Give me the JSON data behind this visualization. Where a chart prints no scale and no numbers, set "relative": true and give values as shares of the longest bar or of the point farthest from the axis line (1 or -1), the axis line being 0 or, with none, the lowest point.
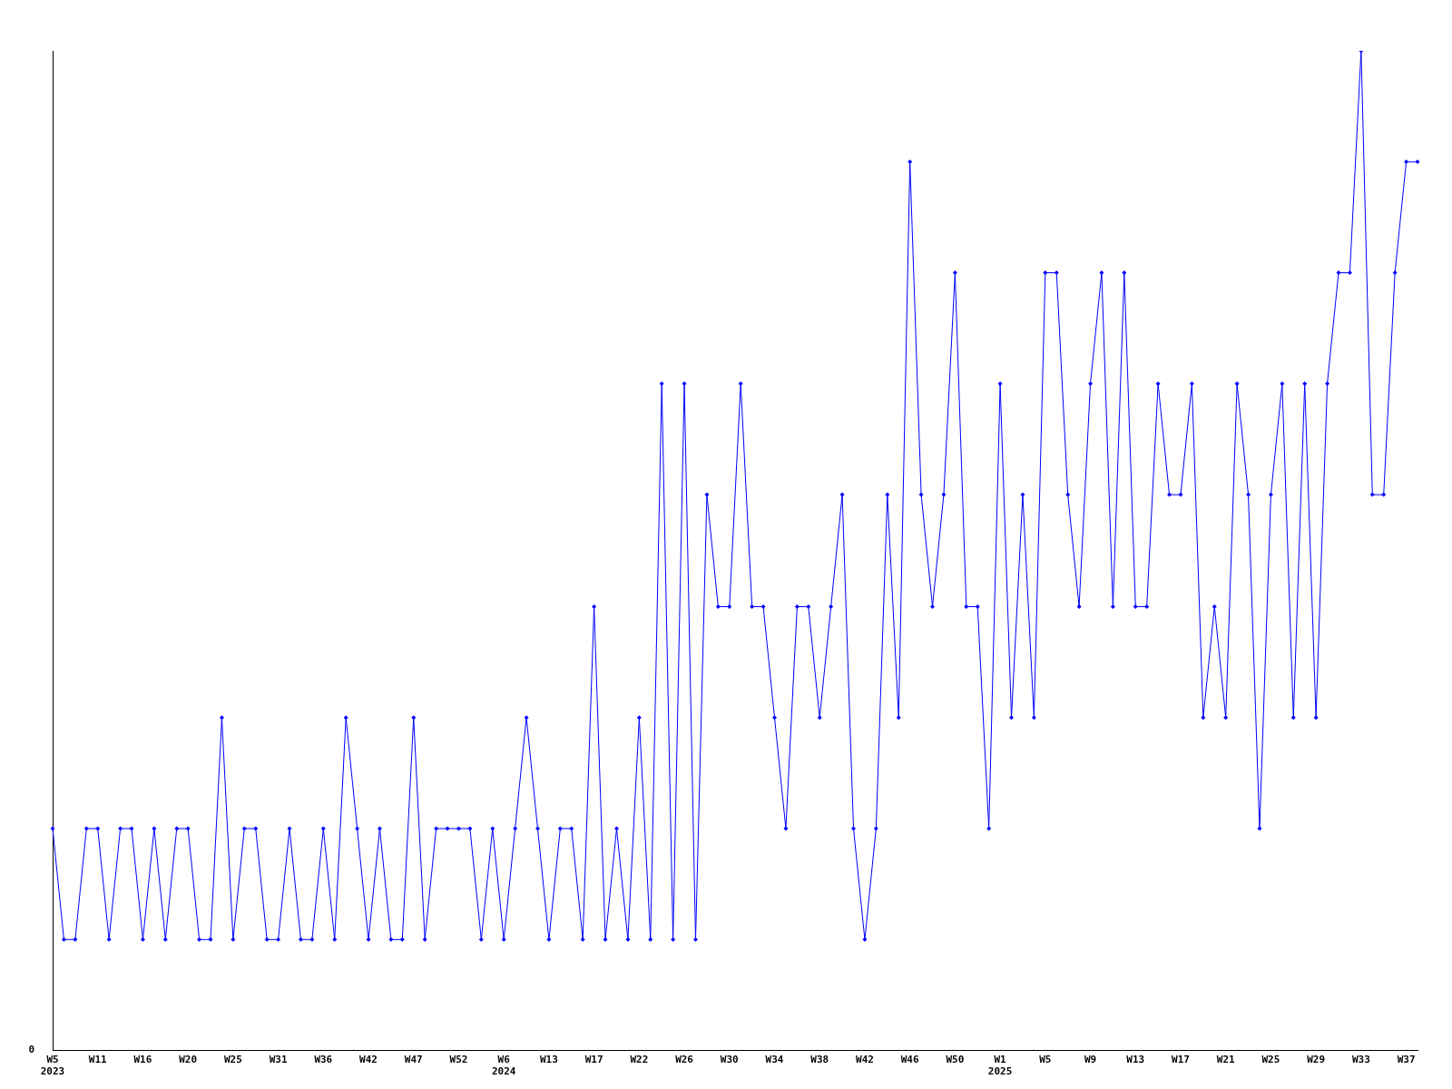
{
  "chart_data": {
    "type": "line",
    "relative": true,
    "grid": false,
    "legend": false,
    "marker": "diamond",
    "line_style": "solid",
    "annotations": [
      "0"
    ],
    "categories": [
      "W5\n2023",
      null,
      null,
      null,
      "W11",
      null,
      null,
      null,
      "W16",
      null,
      null,
      null,
      "W20",
      null,
      null,
      null,
      "W25",
      null,
      null,
      null,
      "W31",
      null,
      null,
      null,
      "W36",
      null,
      null,
      null,
      "W42",
      null,
      null,
      null,
      "W47",
      null,
      null,
      null,
      "W52",
      null,
      null,
      null,
      "W6\n2024",
      null,
      null,
      null,
      "W13",
      null,
      null,
      null,
      "W17",
      null,
      null,
      null,
      "W22",
      null,
      null,
      null,
      "W26",
      null,
      null,
      null,
      "W30",
      null,
      null,
      null,
      "W34",
      null,
      null,
      null,
      "W38",
      null,
      null,
      null,
      "W42",
      null,
      null,
      null,
      "W46",
      null,
      null,
      null,
      "W50",
      null,
      null,
      null,
      "W1\n2025",
      null,
      null,
      null,
      "W5",
      null,
      null,
      null,
      "W9",
      null,
      null,
      null,
      "W13",
      null,
      null,
      null,
      "W17",
      null,
      null,
      null,
      "W21",
      null,
      null,
      null,
      "W25",
      null,
      null,
      null,
      "W29",
      null,
      null,
      null,
      "W33",
      null,
      null,
      null,
      "W37",
      null
    ],
    "series": [
      {
        "color": "#0000ff",
        "values": [
          0.222,
          0.111,
          0.111,
          0.222,
          0.222,
          0.111,
          0.222,
          0.222,
          0.111,
          0.222,
          0.111,
          0.222,
          0.222,
          0.111,
          0.111,
          0.333,
          0.111,
          0.222,
          0.222,
          0.111,
          0.111,
          0.222,
          0.111,
          0.111,
          0.222,
          0.111,
          0.333,
          0.222,
          0.111,
          0.222,
          0.111,
          0.111,
          0.333,
          0.111,
          0.222,
          0.222,
          0.222,
          0.222,
          0.111,
          0.222,
          0.111,
          0.222,
          0.333,
          0.222,
          0.111,
          0.222,
          0.222,
          0.111,
          0.444,
          0.111,
          0.222,
          0.111,
          0.333,
          0.111,
          0.667,
          0.111,
          0.667,
          0.111,
          0.556,
          0.444,
          0.444,
          0.667,
          0.444,
          0.444,
          0.333,
          0.222,
          0.444,
          0.444,
          0.333,
          0.444,
          0.556,
          0.222,
          0.111,
          0.222,
          0.556,
          0.333,
          0.889,
          0.556,
          0.444,
          0.556,
          0.778,
          0.444,
          0.444,
          0.222,
          0.667,
          0.333,
          0.556,
          0.333,
          0.778,
          0.778,
          0.556,
          0.444,
          0.667,
          0.778,
          0.444,
          0.778,
          0.444,
          0.444,
          0.667,
          0.556,
          0.556,
          0.667,
          0.333,
          0.444,
          0.333,
          0.667,
          0.556,
          0.222,
          0.556,
          0.667,
          0.333,
          0.667,
          0.333,
          0.667,
          0.778,
          0.778,
          1,
          0.556,
          0.556,
          0.778,
          0.889,
          0.889
        ]
      }
    ]
  }
}
